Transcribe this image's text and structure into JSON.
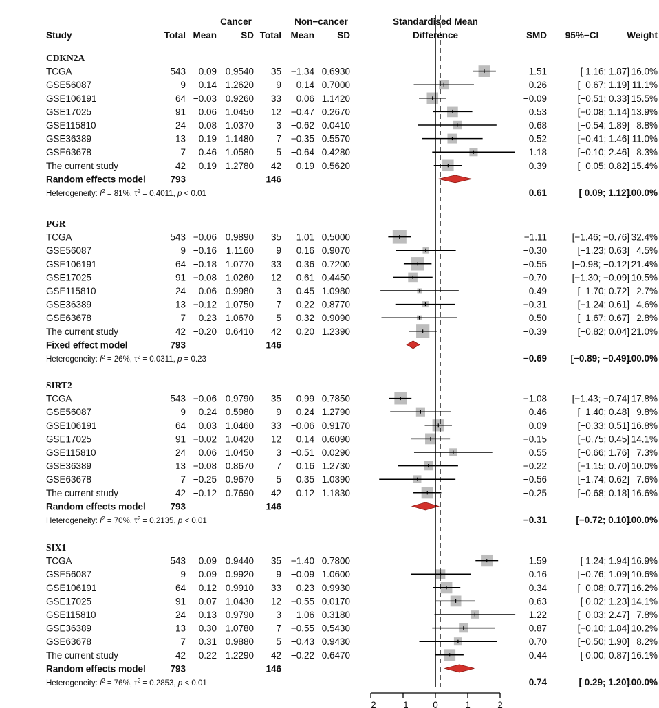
{
  "header": {
    "group1": "Cancer",
    "group2": "Non−cancer",
    "study": "Study",
    "total": "Total",
    "mean": "Mean",
    "sd": "SD",
    "smd_line1": "Standardised Mean",
    "smd_line2": "Difference",
    "smd": "SMD",
    "ci": "95%−CI",
    "weight": "Weight"
  },
  "chart_data": {
    "type": "forest",
    "title": "",
    "xlabel": "",
    "xlim": [
      -2,
      2
    ],
    "xticks": [
      "−2",
      "−1",
      "0",
      "1",
      "2"
    ],
    "xtick_values": [
      -2,
      -1,
      0,
      1,
      2
    ],
    "groups": [
      {
        "gene": "CDKN2A",
        "studies": [
          {
            "name": "TCGA",
            "n1": "543",
            "m1": "0.09",
            "sd1": "0.9540",
            "n2": "35",
            "m2": "−1.34",
            "sd2": "0.6930",
            "smd": 1.51,
            "lo": 1.16,
            "hi": 1.87,
            "smd_txt": "1.51",
            "ci_txt": "[ 1.16; 1.87]",
            "w": 16.0,
            "w_txt": "16.0%"
          },
          {
            "name": "GSE56087",
            "n1": "9",
            "m1": "0.14",
            "sd1": "1.2620",
            "n2": "9",
            "m2": "−0.14",
            "sd2": "0.7000",
            "smd": 0.26,
            "lo": -0.67,
            "hi": 1.19,
            "smd_txt": "0.26",
            "ci_txt": "[−0.67; 1.19]",
            "w": 11.1,
            "w_txt": "11.1%"
          },
          {
            "name": "GSE106191",
            "n1": "64",
            "m1": "−0.03",
            "sd1": "0.9260",
            "n2": "33",
            "m2": "0.06",
            "sd2": "1.1420",
            "smd": -0.09,
            "lo": -0.51,
            "hi": 0.33,
            "smd_txt": "−0.09",
            "ci_txt": "[−0.51; 0.33]",
            "w": 15.5,
            "w_txt": "15.5%"
          },
          {
            "name": "GSE17025",
            "n1": "91",
            "m1": "0.06",
            "sd1": "1.0450",
            "n2": "12",
            "m2": "−0.47",
            "sd2": "0.2670",
            "smd": 0.53,
            "lo": -0.08,
            "hi": 1.14,
            "smd_txt": "0.53",
            "ci_txt": "[−0.08; 1.14]",
            "w": 13.9,
            "w_txt": "13.9%"
          },
          {
            "name": "GSE115810",
            "n1": "24",
            "m1": "0.08",
            "sd1": "1.0370",
            "n2": "3",
            "m2": "−0.62",
            "sd2": "0.0410",
            "smd": 0.68,
            "lo": -0.54,
            "hi": 1.89,
            "smd_txt": "0.68",
            "ci_txt": "[−0.54; 1.89]",
            "w": 8.8,
            "w_txt": "8.8%"
          },
          {
            "name": "GSE36389",
            "n1": "13",
            "m1": "0.19",
            "sd1": "1.1480",
            "n2": "7",
            "m2": "−0.35",
            "sd2": "0.5570",
            "smd": 0.52,
            "lo": -0.41,
            "hi": 1.46,
            "smd_txt": "0.52",
            "ci_txt": "[−0.41; 1.46]",
            "w": 11.0,
            "w_txt": "11.0%"
          },
          {
            "name": "GSE63678",
            "n1": "7",
            "m1": "0.46",
            "sd1": "1.0580",
            "n2": "5",
            "m2": "−0.64",
            "sd2": "0.4280",
            "smd": 1.18,
            "lo": -0.1,
            "hi": 2.46,
            "smd_txt": "1.18",
            "ci_txt": "[−0.10; 2.46]",
            "w": 8.3,
            "w_txt": "8.3%"
          },
          {
            "name": "The current study",
            "n1": "42",
            "m1": "0.19",
            "sd1": "1.2780",
            "n2": "42",
            "m2": "−0.19",
            "sd2": "0.5620",
            "smd": 0.39,
            "lo": -0.05,
            "hi": 0.82,
            "smd_txt": "0.39",
            "ci_txt": "[−0.05; 0.82]",
            "w": 15.4,
            "w_txt": "15.4%"
          }
        ],
        "pooled": {
          "label": "Random effects model",
          "n1": "793",
          "n2": "146",
          "smd": 0.61,
          "lo": 0.09,
          "hi": 1.12,
          "smd_txt": "0.61",
          "ci_txt": "[ 0.09; 1.12]",
          "w_txt": "100.0%"
        },
        "het": {
          "prefix": "Heterogeneity: ",
          "i2": "I",
          "i2_rest": " = 81%, ",
          "tau": "τ",
          "tau_rest": " = 0.4011, ",
          "p": "p",
          "p_rest": " < 0.01"
        }
      },
      {
        "gene": "PGR",
        "studies": [
          {
            "name": "TCGA",
            "n1": "543",
            "m1": "−0.06",
            "sd1": "0.9890",
            "n2": "35",
            "m2": "1.01",
            "sd2": "0.5000",
            "smd": -1.11,
            "lo": -1.46,
            "hi": -0.76,
            "smd_txt": "−1.11",
            "ci_txt": "[−1.46; −0.76]",
            "w": 32.4,
            "w_txt": "32.4%"
          },
          {
            "name": "GSE56087",
            "n1": "9",
            "m1": "−0.16",
            "sd1": "1.1160",
            "n2": "9",
            "m2": "0.16",
            "sd2": "0.9070",
            "smd": -0.3,
            "lo": -1.23,
            "hi": 0.63,
            "smd_txt": "−0.30",
            "ci_txt": "[−1.23; 0.63]",
            "w": 4.5,
            "w_txt": "4.5%"
          },
          {
            "name": "GSE106191",
            "n1": "64",
            "m1": "−0.18",
            "sd1": "1.0770",
            "n2": "33",
            "m2": "0.36",
            "sd2": "0.7200",
            "smd": -0.55,
            "lo": -0.98,
            "hi": -0.12,
            "smd_txt": "−0.55",
            "ci_txt": "[−0.98; −0.12]",
            "w": 21.4,
            "w_txt": "21.4%"
          },
          {
            "name": "GSE17025",
            "n1": "91",
            "m1": "−0.08",
            "sd1": "1.0260",
            "n2": "12",
            "m2": "0.61",
            "sd2": "0.4450",
            "smd": -0.7,
            "lo": -1.3,
            "hi": -0.09,
            "smd_txt": "−0.70",
            "ci_txt": "[−1.30; −0.09]",
            "w": 10.5,
            "w_txt": "10.5%"
          },
          {
            "name": "GSE115810",
            "n1": "24",
            "m1": "−0.06",
            "sd1": "0.9980",
            "n2": "3",
            "m2": "0.45",
            "sd2": "1.0980",
            "smd": -0.49,
            "lo": -1.7,
            "hi": 0.72,
            "smd_txt": "−0.49",
            "ci_txt": "[−1.70; 0.72]",
            "w": 2.7,
            "w_txt": "2.7%"
          },
          {
            "name": "GSE36389",
            "n1": "13",
            "m1": "−0.12",
            "sd1": "1.0750",
            "n2": "7",
            "m2": "0.22",
            "sd2": "0.8770",
            "smd": -0.31,
            "lo": -1.24,
            "hi": 0.61,
            "smd_txt": "−0.31",
            "ci_txt": "[−1.24; 0.61]",
            "w": 4.6,
            "w_txt": "4.6%"
          },
          {
            "name": "GSE63678",
            "n1": "7",
            "m1": "−0.23",
            "sd1": "1.0670",
            "n2": "5",
            "m2": "0.32",
            "sd2": "0.9090",
            "smd": -0.5,
            "lo": -1.67,
            "hi": 0.67,
            "smd_txt": "−0.50",
            "ci_txt": "[−1.67; 0.67]",
            "w": 2.8,
            "w_txt": "2.8%"
          },
          {
            "name": "The current study",
            "n1": "42",
            "m1": "−0.20",
            "sd1": "0.6410",
            "n2": "42",
            "m2": "0.20",
            "sd2": "1.2390",
            "smd": -0.39,
            "lo": -0.82,
            "hi": 0.04,
            "smd_txt": "−0.39",
            "ci_txt": "[−0.82; 0.04]",
            "w": 21.0,
            "w_txt": "21.0%"
          }
        ],
        "pooled": {
          "label": "Fixed effect model",
          "n1": "793",
          "n2": "146",
          "smd": -0.69,
          "lo": -0.89,
          "hi": -0.49,
          "smd_txt": "−0.69",
          "ci_txt": "[−0.89; −0.49]",
          "w_txt": "100.0%"
        },
        "het": {
          "prefix": "Heterogeneity: ",
          "i2": "I",
          "i2_rest": " = 26%, ",
          "tau": "τ",
          "tau_rest": " = 0.0311, ",
          "p": "p",
          "p_rest": " = 0.23"
        }
      },
      {
        "gene": "SIRT2",
        "studies": [
          {
            "name": "TCGA",
            "n1": "543",
            "m1": "−0.06",
            "sd1": "0.9790",
            "n2": "35",
            "m2": "0.99",
            "sd2": "0.7850",
            "smd": -1.08,
            "lo": -1.43,
            "hi": -0.74,
            "smd_txt": "−1.08",
            "ci_txt": "[−1.43; −0.74]",
            "w": 17.8,
            "w_txt": "17.8%"
          },
          {
            "name": "GSE56087",
            "n1": "9",
            "m1": "−0.24",
            "sd1": "0.5980",
            "n2": "9",
            "m2": "0.24",
            "sd2": "1.2790",
            "smd": -0.46,
            "lo": -1.4,
            "hi": 0.48,
            "smd_txt": "−0.46",
            "ci_txt": "[−1.40; 0.48]",
            "w": 9.8,
            "w_txt": "9.8%"
          },
          {
            "name": "GSE106191",
            "n1": "64",
            "m1": "0.03",
            "sd1": "1.0460",
            "n2": "33",
            "m2": "−0.06",
            "sd2": "0.9170",
            "smd": 0.09,
            "lo": -0.33,
            "hi": 0.51,
            "smd_txt": "0.09",
            "ci_txt": "[−0.33; 0.51]",
            "w": 16.8,
            "w_txt": "16.8%"
          },
          {
            "name": "GSE17025",
            "n1": "91",
            "m1": "−0.02",
            "sd1": "1.0420",
            "n2": "12",
            "m2": "0.14",
            "sd2": "0.6090",
            "smd": -0.15,
            "lo": -0.75,
            "hi": 0.45,
            "smd_txt": "−0.15",
            "ci_txt": "[−0.75; 0.45]",
            "w": 14.1,
            "w_txt": "14.1%"
          },
          {
            "name": "GSE115810",
            "n1": "24",
            "m1": "0.06",
            "sd1": "1.0450",
            "n2": "3",
            "m2": "−0.51",
            "sd2": "0.0290",
            "smd": 0.55,
            "lo": -0.66,
            "hi": 1.76,
            "smd_txt": "0.55",
            "ci_txt": "[−0.66; 1.76]",
            "w": 7.3,
            "w_txt": "7.3%"
          },
          {
            "name": "GSE36389",
            "n1": "13",
            "m1": "−0.08",
            "sd1": "0.8670",
            "n2": "7",
            "m2": "0.16",
            "sd2": "1.2730",
            "smd": -0.22,
            "lo": -1.15,
            "hi": 0.7,
            "smd_txt": "−0.22",
            "ci_txt": "[−1.15; 0.70]",
            "w": 10.0,
            "w_txt": "10.0%"
          },
          {
            "name": "GSE63678",
            "n1": "7",
            "m1": "−0.25",
            "sd1": "0.9670",
            "n2": "5",
            "m2": "0.35",
            "sd2": "1.0390",
            "smd": -0.56,
            "lo": -1.74,
            "hi": 0.62,
            "smd_txt": "−0.56",
            "ci_txt": "[−1.74; 0.62]",
            "w": 7.6,
            "w_txt": "7.6%"
          },
          {
            "name": "The current study",
            "n1": "42",
            "m1": "−0.12",
            "sd1": "0.7690",
            "n2": "42",
            "m2": "0.12",
            "sd2": "1.1830",
            "smd": -0.25,
            "lo": -0.68,
            "hi": 0.18,
            "smd_txt": "−0.25",
            "ci_txt": "[−0.68; 0.18]",
            "w": 16.6,
            "w_txt": "16.6%"
          }
        ],
        "pooled": {
          "label": "Random effects model",
          "n1": "793",
          "n2": "146",
          "smd": -0.31,
          "lo": -0.72,
          "hi": 0.1,
          "smd_txt": "−0.31",
          "ci_txt": "[−0.72; 0.10]",
          "w_txt": "100.0%"
        },
        "het": {
          "prefix": "Heterogeneity: ",
          "i2": "I",
          "i2_rest": " = 70%, ",
          "tau": "τ",
          "tau_rest": " = 0.2135, ",
          "p": "p",
          "p_rest": " < 0.01"
        }
      },
      {
        "gene": "SIX1",
        "studies": [
          {
            "name": "TCGA",
            "n1": "543",
            "m1": "0.09",
            "sd1": "0.9440",
            "n2": "35",
            "m2": "−1.40",
            "sd2": "0.7800",
            "smd": 1.59,
            "lo": 1.24,
            "hi": 1.94,
            "smd_txt": "1.59",
            "ci_txt": "[ 1.24; 1.94]",
            "w": 16.9,
            "w_txt": "16.9%"
          },
          {
            "name": "GSE56087",
            "n1": "9",
            "m1": "0.09",
            "sd1": "0.9920",
            "n2": "9",
            "m2": "−0.09",
            "sd2": "1.0600",
            "smd": 0.16,
            "lo": -0.76,
            "hi": 1.09,
            "smd_txt": "0.16",
            "ci_txt": "[−0.76; 1.09]",
            "w": 10.6,
            "w_txt": "10.6%"
          },
          {
            "name": "GSE106191",
            "n1": "64",
            "m1": "0.12",
            "sd1": "0.9910",
            "n2": "33",
            "m2": "−0.23",
            "sd2": "0.9930",
            "smd": 0.34,
            "lo": -0.08,
            "hi": 0.77,
            "smd_txt": "0.34",
            "ci_txt": "[−0.08; 0.77]",
            "w": 16.2,
            "w_txt": "16.2%"
          },
          {
            "name": "GSE17025",
            "n1": "91",
            "m1": "0.07",
            "sd1": "1.0430",
            "n2": "12",
            "m2": "−0.55",
            "sd2": "0.0170",
            "smd": 0.63,
            "lo": 0.02,
            "hi": 1.23,
            "smd_txt": "0.63",
            "ci_txt": "[ 0.02; 1.23]",
            "w": 14.1,
            "w_txt": "14.1%"
          },
          {
            "name": "GSE115810",
            "n1": "24",
            "m1": "0.13",
            "sd1": "0.9790",
            "n2": "3",
            "m2": "−1.06",
            "sd2": "0.3180",
            "smd": 1.22,
            "lo": -0.03,
            "hi": 2.47,
            "smd_txt": "1.22",
            "ci_txt": "[−0.03; 2.47]",
            "w": 7.8,
            "w_txt": "7.8%"
          },
          {
            "name": "GSE36389",
            "n1": "13",
            "m1": "0.30",
            "sd1": "1.0780",
            "n2": "7",
            "m2": "−0.55",
            "sd2": "0.5430",
            "smd": 0.87,
            "lo": -0.1,
            "hi": 1.84,
            "smd_txt": "0.87",
            "ci_txt": "[−0.10; 1.84]",
            "w": 10.2,
            "w_txt": "10.2%"
          },
          {
            "name": "GSE63678",
            "n1": "7",
            "m1": "0.31",
            "sd1": "0.9880",
            "n2": "5",
            "m2": "−0.43",
            "sd2": "0.9430",
            "smd": 0.7,
            "lo": -0.5,
            "hi": 1.9,
            "smd_txt": "0.70",
            "ci_txt": "[−0.50; 1.90]",
            "w": 8.2,
            "w_txt": "8.2%"
          },
          {
            "name": "The current study",
            "n1": "42",
            "m1": "0.22",
            "sd1": "1.2290",
            "n2": "42",
            "m2": "−0.22",
            "sd2": "0.6470",
            "smd": 0.44,
            "lo": 0.0,
            "hi": 0.87,
            "smd_txt": "0.44",
            "ci_txt": "[ 0.00; 0.87]",
            "w": 16.1,
            "w_txt": "16.1%"
          }
        ],
        "pooled": {
          "label": "Random effects model",
          "n1": "793",
          "n2": "146",
          "smd": 0.74,
          "lo": 0.29,
          "hi": 1.2,
          "smd_txt": "0.74",
          "ci_txt": "[ 0.29; 1.20]",
          "w_txt": "100.0%"
        },
        "het": {
          "prefix": "Heterogeneity: ",
          "i2": "I",
          "i2_rest": " = 76%, ",
          "tau": "τ",
          "tau_rest": " = 0.2853, ",
          "p": "p",
          "p_rest": " < 0.01"
        }
      }
    ],
    "colors": {
      "box": "#bdbdbd",
      "diamond": "#d3312b",
      "diamond_stroke": "#8b1a14",
      "line": "#000000"
    }
  }
}
